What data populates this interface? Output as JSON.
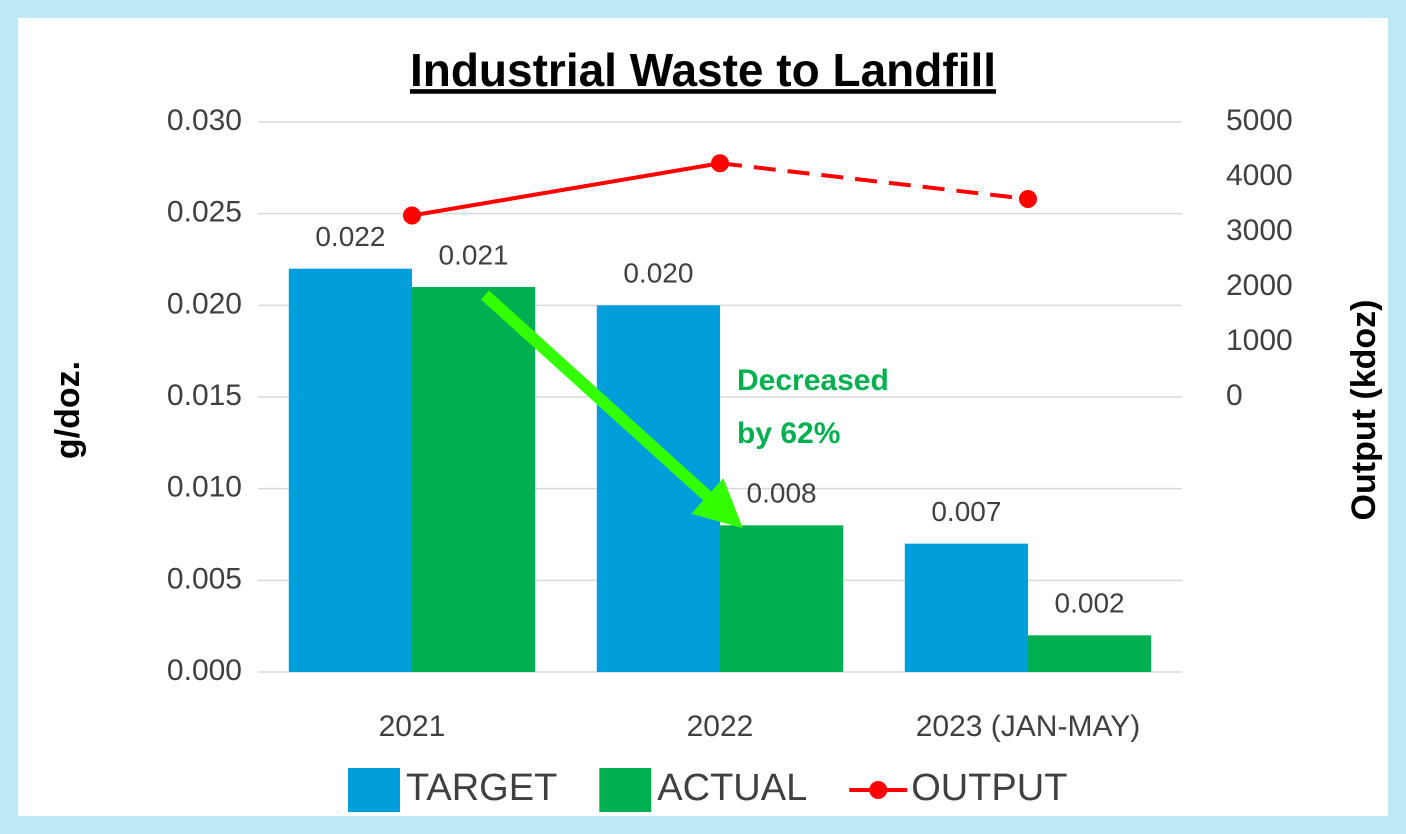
{
  "chart_data": {
    "type": "bar",
    "title": "Industrial Waste to Landfill",
    "ylabel": "g/doz.",
    "y2label": "Output (kdoz)",
    "categories": [
      "2021",
      "2022",
      "2023 (JAN-MAY)"
    ],
    "series": [
      {
        "name": "TARGET",
        "color": "#009edb",
        "type": "bar",
        "values": [
          0.022,
          0.02,
          0.007
        ],
        "value_labels": [
          "0.022",
          "0.020",
          "0.007"
        ]
      },
      {
        "name": "ACTUAL",
        "color": "#00b050",
        "type": "bar",
        "values": [
          0.021,
          0.008,
          0.002
        ],
        "value_labels": [
          "0.021",
          "0.008",
          "0.002"
        ]
      },
      {
        "name": "OUTPUT",
        "color": "#ff0000",
        "type": "line",
        "axis": "y2",
        "values": [
          3300,
          4250,
          3600
        ],
        "dash_last_segment": true
      }
    ],
    "ylim": [
      0,
      0.03
    ],
    "yticks": [
      {
        "value": 0,
        "label": "0.000"
      },
      {
        "value": 0.005,
        "label": "0.005"
      },
      {
        "value": 0.01,
        "label": "0.010"
      },
      {
        "value": 0.015,
        "label": "0.015"
      },
      {
        "value": 0.02,
        "label": "0.020"
      },
      {
        "value": 0.025,
        "label": "0.025"
      },
      {
        "value": 0.03,
        "label": "0.030"
      }
    ],
    "y2lim": [
      -5000,
      5000
    ],
    "y2ticks": [
      0,
      1000,
      2000,
      3000,
      4000,
      5000
    ],
    "grid": true,
    "legend": "bottom",
    "annotation": [
      "Decreased",
      "by 62%"
    ],
    "annotation_color": "#00b050"
  }
}
